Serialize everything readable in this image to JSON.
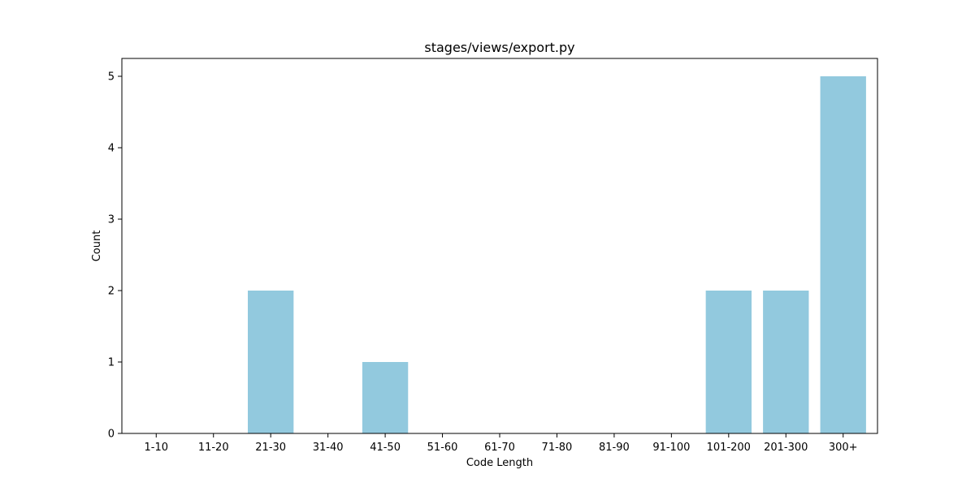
{
  "chart_data": {
    "type": "bar",
    "title": "stages/views/export.py",
    "xlabel": "Code Length",
    "ylabel": "Count",
    "categories": [
      "1-10",
      "11-20",
      "21-30",
      "31-40",
      "41-50",
      "51-60",
      "61-70",
      "71-80",
      "81-90",
      "91-100",
      "101-200",
      "201-300",
      "300+"
    ],
    "values": [
      0,
      0,
      2,
      0,
      1,
      0,
      0,
      0,
      0,
      0,
      2,
      2,
      5
    ],
    "ylim": [
      0,
      5.25
    ],
    "yticks": [
      "0",
      "1",
      "2",
      "3",
      "4",
      "5"
    ],
    "bar_color": "#92c9de",
    "grid": false,
    "legend": "none"
  }
}
